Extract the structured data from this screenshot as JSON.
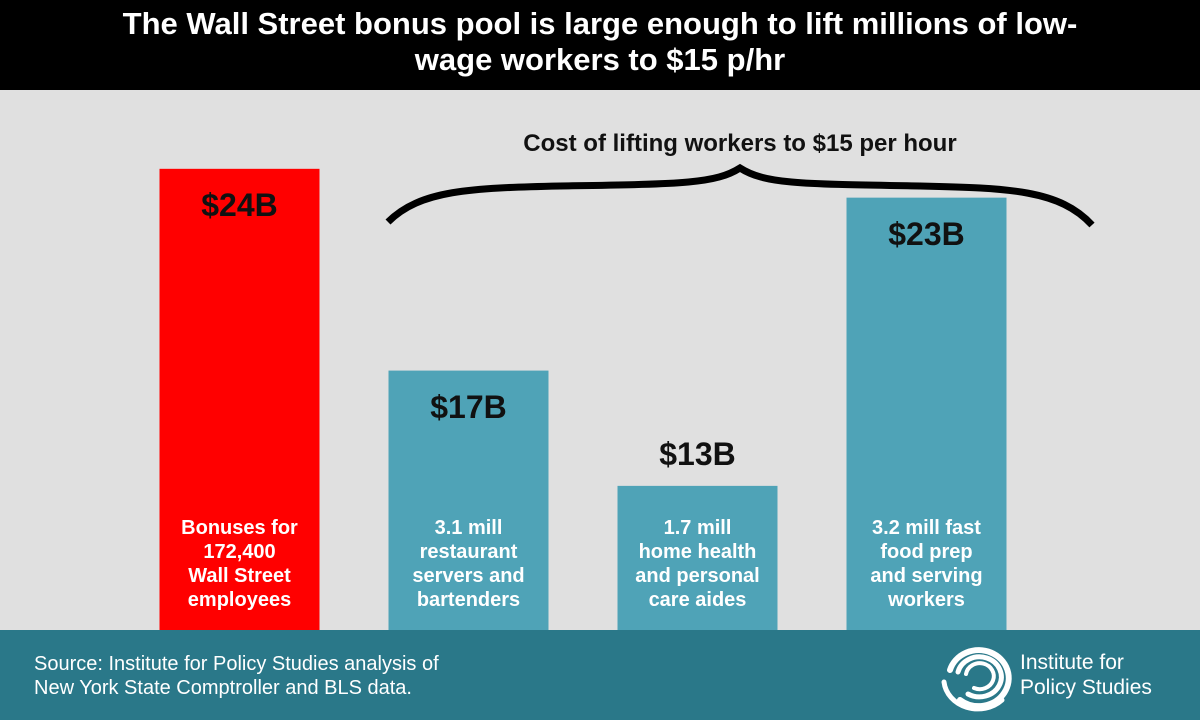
{
  "chart_data": {
    "type": "bar",
    "title": "The Wall Street bonus pool is large enough to lift millions of low-wage workers to $15 p/hr",
    "annotation": "Cost of lifting workers to $15 per hour",
    "categories": [
      "Bonuses for\n172,400\nWall Street\nemployees",
      "3.1 mill\nrestaurant\nservers and\nbartenders",
      "1.7 mill\nhome health\nand personal\ncare aides",
      "3.2 mill fast\nfood prep\nand serving\nworkers"
    ],
    "values": [
      24,
      17,
      13,
      23
    ],
    "value_labels": [
      "$24B",
      "$17B",
      "$13B",
      "$23B"
    ],
    "colors": [
      "#ff0000",
      "#4fa3b7",
      "#4fa3b7",
      "#4fa3b7"
    ],
    "ylim": [
      8,
      25
    ],
    "source": "Source: Institute for Policy Studies analysis of\nNew York State Comptroller and BLS data.",
    "publisher": "Institute for\nPolicy Studies"
  }
}
